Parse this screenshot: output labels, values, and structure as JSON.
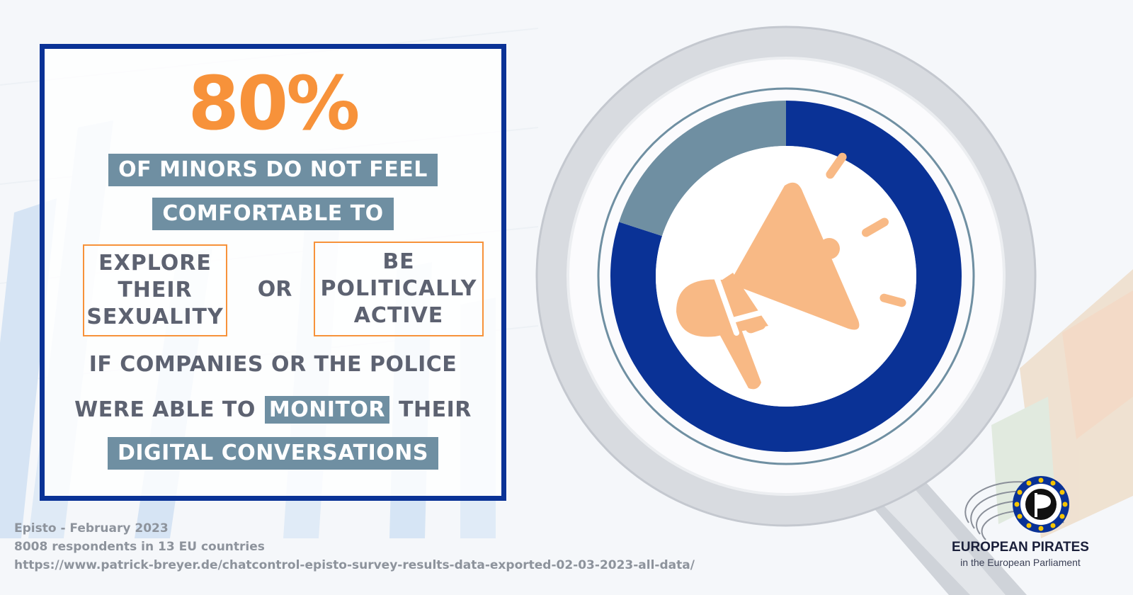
{
  "colors": {
    "accent_orange": "#f7923a",
    "band_gray_blue": "#6f8fa2",
    "frame_blue": "#0a3296",
    "text_gray": "#5d6271",
    "megaphone": "#f8b985"
  },
  "headline": {
    "percent": "80%",
    "line1": "OF MINORS DO NOT FEEL",
    "line2": "COMFORTABLE TO"
  },
  "options": {
    "left": "EXPLORE\nTHEIR\nSEXUALITY",
    "or": "OR",
    "right": "BE\nPOLITICALLY\nACTIVE"
  },
  "condition": {
    "line1": "IF COMPANIES OR THE POLICE",
    "line2_pre": "WERE ABLE TO",
    "line2_highlight": "MONITOR",
    "line2_post": "THEIR",
    "line3": "DIGITAL CONVERSATIONS"
  },
  "footer": {
    "source": "Episto  - February 2023",
    "sample": "8008 respondents in 13 EU countries",
    "url": "https://www.patrick-breyer.de/chatcontrol-episto-survey-results-data-exported-02-03-2023-all-data/"
  },
  "chart_data": {
    "type": "pie",
    "variant": "donut",
    "values": [
      80,
      20
    ],
    "colors": [
      "#0a3296",
      "#6f8fa2"
    ],
    "center_icon": "megaphone-icon",
    "legend": "none"
  },
  "logo": {
    "name": "EUROPEAN PIRATES",
    "subtitle": "in the European Parliament",
    "icon": "pirate-flag-icon"
  }
}
